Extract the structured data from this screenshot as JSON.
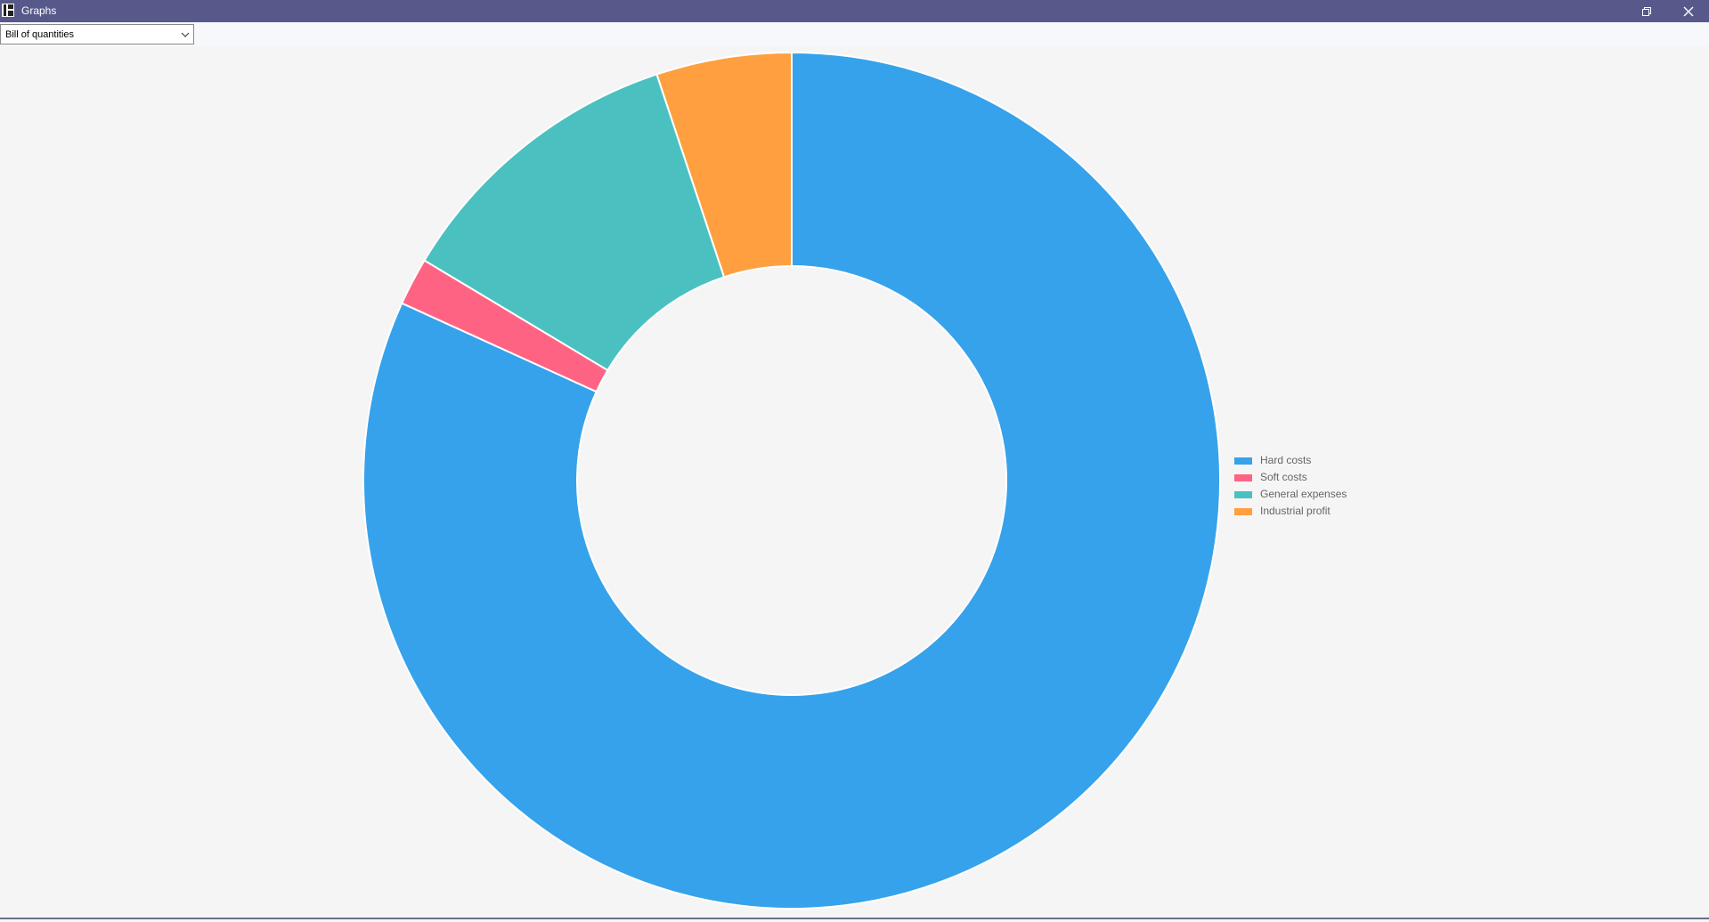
{
  "window": {
    "title": "Graphs",
    "colors": {
      "titlebar": "#58598b",
      "background": "#f5f5f5"
    },
    "controls": [
      {
        "name": "restore-icon"
      },
      {
        "name": "close-icon"
      }
    ]
  },
  "toolbar": {
    "dataset_select": {
      "value": "Bill of quantities"
    }
  },
  "chart_data": {
    "type": "pie",
    "variant": "doughnut",
    "title": "",
    "categories": [
      "Hard costs",
      "Soft costs",
      "General expenses",
      "Industrial profit"
    ],
    "values": [
      81.8,
      1.8,
      11.3,
      5.1
    ],
    "unit": "percent",
    "colors": [
      "#36a2eb",
      "#ff6384",
      "#4bc0c0",
      "#ff9f40"
    ],
    "legend_position": "right"
  }
}
